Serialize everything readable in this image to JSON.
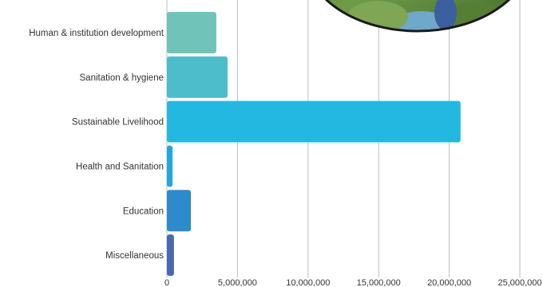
{
  "chart_data": {
    "type": "bar",
    "orientation": "horizontal",
    "title": "",
    "xlabel": "",
    "ylabel": "",
    "categories": [
      "Human & institution development",
      "Sanitation & hygiene",
      "Sustainable Livelihood",
      "Health and Sanitation",
      "Education",
      "Miscellaneous"
    ],
    "values": [
      3500,
      4300,
      20800,
      400,
      1700,
      500
    ],
    "colors": [
      "#6fc3b8",
      "#4dbccb",
      "#23b8e0",
      "#1fa8e0",
      "#2e8bcb",
      "#4a67b3"
    ],
    "xlim": [
      0,
      25000
    ],
    "xticks": [
      0,
      5000,
      10000,
      15000,
      20000,
      25000
    ],
    "xtick_labels": [
      "0",
      "5,000,000",
      "10,000,000",
      "15,000,000",
      "20,000,000",
      "25,000,000"
    ],
    "grid": true,
    "legend": "none"
  },
  "decoration": {
    "photo_icon": "circular-photo-icon",
    "colors": {
      "ring": "#1a1a1a",
      "foliage": "#5b8f3a",
      "water": "#6fa8c8"
    }
  }
}
